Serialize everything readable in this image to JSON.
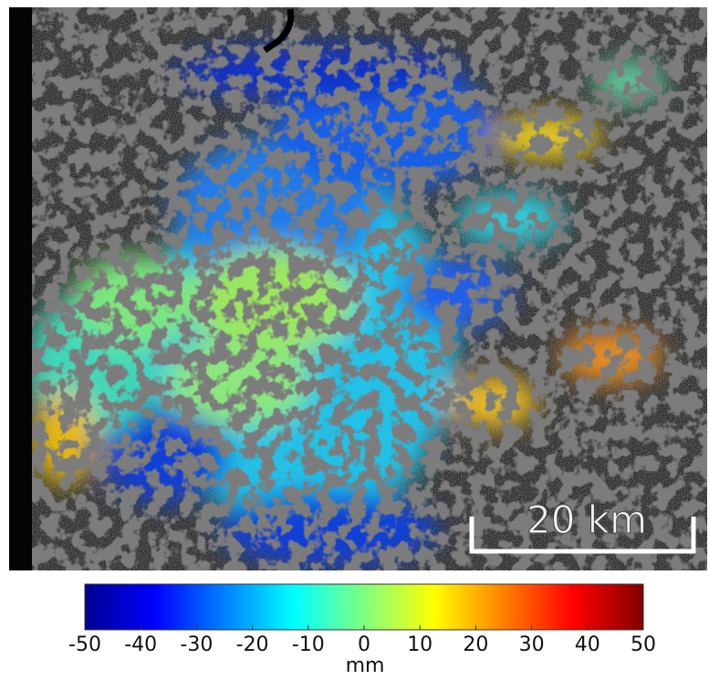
{
  "map": {
    "scale_bar": {
      "label": "20 km"
    }
  },
  "colorbar": {
    "label": "mm",
    "lim": [
      -50,
      50
    ],
    "ticks": [
      -50,
      -40,
      -30,
      -20,
      -10,
      0,
      10,
      20,
      30,
      40,
      50
    ],
    "colors": [
      "#00008f",
      "#0000ff",
      "#0080ff",
      "#00ffff",
      "#80ff80",
      "#ffff00",
      "#ff8000",
      "#ff0000",
      "#800000"
    ]
  }
}
